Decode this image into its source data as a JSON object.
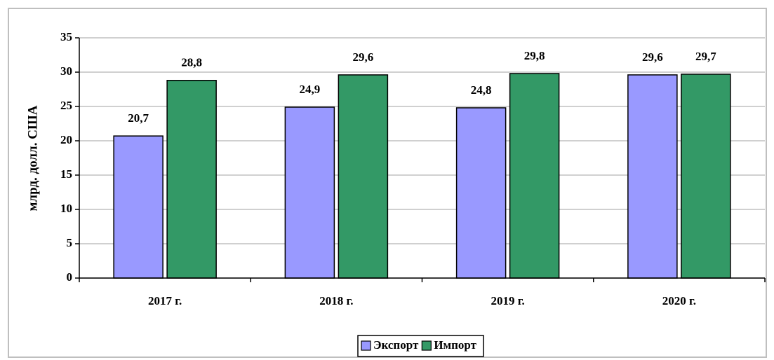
{
  "chart_data": {
    "type": "bar",
    "y_label": "млрд. долл. США",
    "categories": [
      "2017 г.",
      "2018 г.",
      "2019 г.",
      "2020 г."
    ],
    "series": [
      {
        "name": "Экспорт",
        "color": "#9999ff",
        "values": [
          20.7,
          24.9,
          24.8,
          29.6
        ],
        "value_labels": [
          "20,7",
          "24,9",
          "24,8",
          "29,6"
        ]
      },
      {
        "name": "Импорт",
        "color": "#339966",
        "values": [
          28.8,
          29.6,
          29.8,
          29.7
        ],
        "value_labels": [
          "28,8",
          "29,6",
          "29,8",
          "29,7"
        ]
      }
    ],
    "ylim": [
      0,
      35
    ],
    "yticks": [
      0,
      5,
      10,
      15,
      20,
      25,
      30,
      35
    ],
    "grid": true,
    "legend": "bottom"
  }
}
